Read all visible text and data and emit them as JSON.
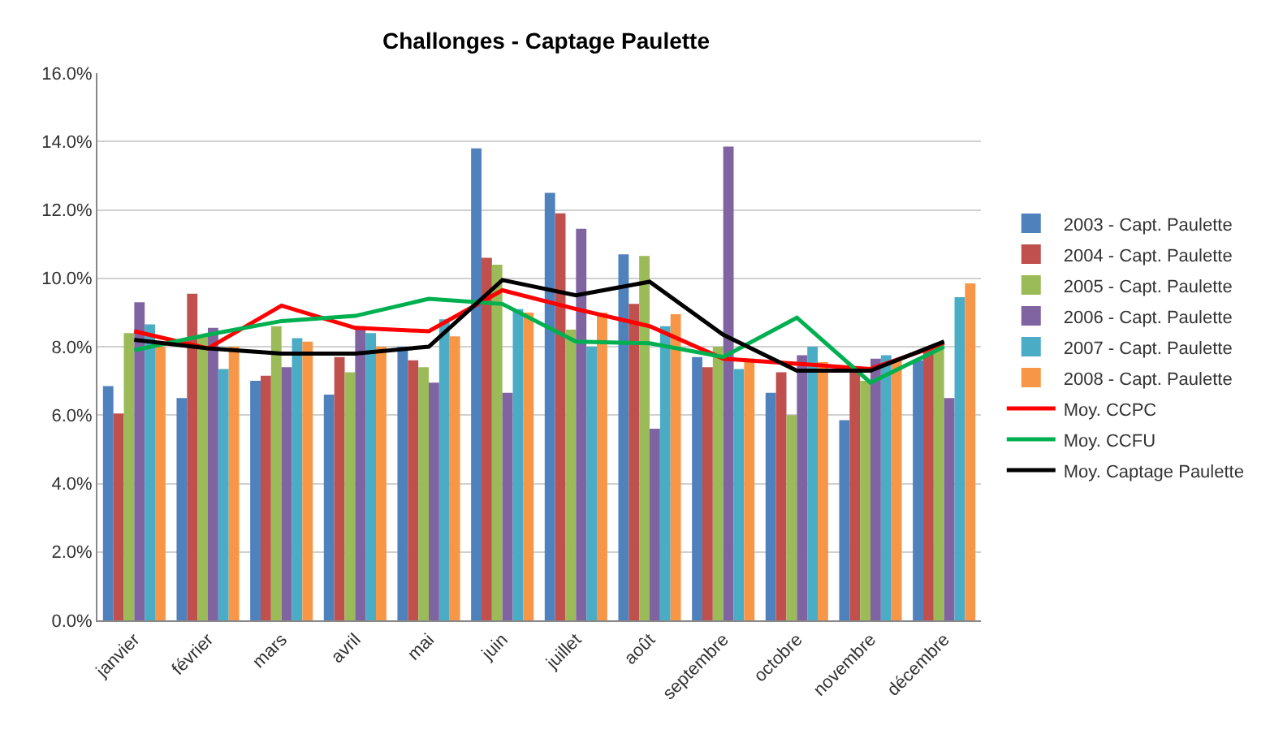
{
  "chart_data": {
    "type": "bar",
    "title": "Challonges - Captage Paulette",
    "categories": [
      "janvier",
      "février",
      "mars",
      "avril",
      "mai",
      "juin",
      "juillet",
      "août",
      "septembre",
      "octobre",
      "novembre",
      "décembre"
    ],
    "series": [
      {
        "name": "2003 - Capt. Paulette",
        "color": "#4f81bd",
        "values": [
          6.85,
          6.5,
          7.0,
          6.6,
          8.0,
          13.8,
          12.5,
          10.7,
          7.7,
          6.65,
          5.85,
          7.6
        ]
      },
      {
        "name": "2004 - Capt. Paulette",
        "color": "#c0504d",
        "values": [
          6.05,
          9.55,
          7.15,
          7.7,
          7.6,
          10.6,
          11.9,
          9.25,
          7.4,
          7.25,
          7.3,
          7.95
        ]
      },
      {
        "name": "2005 - Capt. Paulette",
        "color": "#9bbb59",
        "values": [
          8.4,
          8.3,
          8.6,
          7.25,
          7.4,
          10.4,
          8.5,
          10.65,
          8.0,
          6.0,
          7.0,
          8.0
        ]
      },
      {
        "name": "2006 - Capt. Paulette",
        "color": "#8064a2",
        "values": [
          9.3,
          8.55,
          7.4,
          8.6,
          6.95,
          6.65,
          11.45,
          5.6,
          13.85,
          7.75,
          7.65,
          6.5
        ]
      },
      {
        "name": "2007 - Capt. Paulette",
        "color": "#4bacc6",
        "values": [
          8.65,
          7.35,
          8.25,
          8.4,
          8.8,
          9.1,
          8.0,
          8.6,
          7.35,
          8.0,
          7.75,
          9.45
        ]
      },
      {
        "name": "2008 - Capt. Paulette",
        "color": "#f79646",
        "values": [
          8.0,
          8.0,
          8.15,
          8.0,
          8.3,
          9.0,
          9.0,
          8.95,
          7.65,
          7.55,
          7.6,
          9.85
        ]
      },
      {
        "name": "Moy. CCPC",
        "color": "#ff0000",
        "type": "line",
        "values": [
          8.45,
          7.95,
          9.2,
          8.55,
          8.45,
          9.65,
          9.1,
          8.6,
          7.65,
          7.5,
          7.35,
          8.1
        ]
      },
      {
        "name": "Moy. CCFU",
        "color": "#00b050",
        "type": "line",
        "values": [
          7.9,
          8.35,
          8.75,
          8.9,
          9.4,
          9.25,
          8.15,
          8.1,
          7.7,
          8.85,
          6.95,
          8.0
        ]
      },
      {
        "name": "Moy. Captage Paulette",
        "color": "#000000",
        "type": "line",
        "values": [
          8.2,
          7.95,
          7.8,
          7.8,
          8.0,
          9.95,
          9.5,
          9.9,
          8.35,
          7.3,
          7.3,
          8.15
        ]
      }
    ],
    "ylim": [
      0,
      16
    ],
    "yticks": [
      {
        "value": 0,
        "label": "0.0%"
      },
      {
        "value": 2,
        "label": "2.0%"
      },
      {
        "value": 4,
        "label": "4.0%"
      },
      {
        "value": 6,
        "label": "6.0%"
      },
      {
        "value": 8,
        "label": "8.0%"
      },
      {
        "value": 10,
        "label": "10.0%"
      },
      {
        "value": 12,
        "label": "12.0%"
      },
      {
        "value": 14,
        "label": "14.0%"
      },
      {
        "value": 16,
        "label": "16.0%"
      }
    ],
    "grid": "y",
    "legend": "right",
    "marker": "none",
    "line_style": "solid"
  }
}
